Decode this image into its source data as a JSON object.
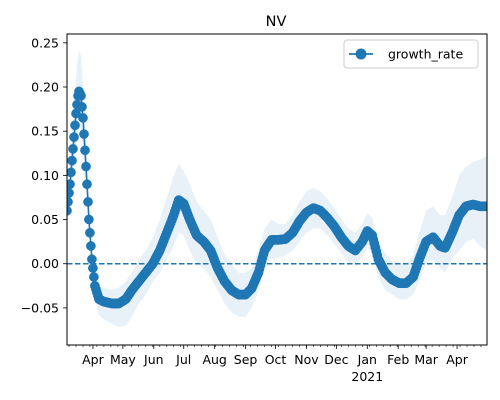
{
  "chart_data": {
    "type": "line",
    "title": "NV",
    "xlabel": "",
    "ylabel": "",
    "x_range": [
      "2020-03-06",
      "2021-05-01"
    ],
    "ylim": [
      -0.092,
      0.26
    ],
    "y_ticks": [
      -0.05,
      0.0,
      0.05,
      0.1,
      0.15,
      0.2,
      0.25
    ],
    "y_tick_labels": [
      "−0.05",
      "0.00",
      "0.05",
      "0.10",
      "0.15",
      "0.20",
      "0.25"
    ],
    "x_tick_labels": [
      "Apr",
      "May",
      "Jun",
      "Jul",
      "Aug",
      "Sep",
      "Oct",
      "Nov",
      "Dec",
      "Jan",
      "Feb",
      "Mar",
      "Apr"
    ],
    "x_tick_dates": [
      "2020-04-01",
      "2020-05-01",
      "2020-06-01",
      "2020-07-01",
      "2020-08-01",
      "2020-09-01",
      "2020-10-01",
      "2020-11-01",
      "2020-12-01",
      "2021-01-01",
      "2021-02-01",
      "2021-03-01",
      "2021-04-01"
    ],
    "x_year_label": "2021",
    "legend": {
      "entries": [
        "growth_rate"
      ],
      "placement": "top-right"
    },
    "reference_line": {
      "y": 0.0,
      "style": "dashed"
    },
    "grid": false,
    "colors": {
      "series": "#1f77b4",
      "band": "#1f77b4"
    },
    "series": [
      {
        "name": "growth_rate",
        "marker": "circle",
        "points": [
          [
            "2020-03-06",
            0.06,
            0.045,
            0.075
          ],
          [
            "2020-03-09",
            0.09,
            0.07,
            0.115
          ],
          [
            "2020-03-12",
            0.13,
            0.1,
            0.165
          ],
          [
            "2020-03-15",
            0.17,
            0.135,
            0.21
          ],
          [
            "2020-03-17",
            0.19,
            0.15,
            0.235
          ],
          [
            "2020-03-18",
            0.195,
            0.155,
            0.242
          ],
          [
            "2020-03-20",
            0.19,
            0.15,
            0.235
          ],
          [
            "2020-03-22",
            0.165,
            0.13,
            0.205
          ],
          [
            "2020-03-25",
            0.11,
            0.085,
            0.14
          ],
          [
            "2020-03-28",
            0.05,
            0.035,
            0.07
          ],
          [
            "2020-03-31",
            0.005,
            -0.005,
            0.02
          ],
          [
            "2020-04-03",
            -0.025,
            -0.04,
            -0.01
          ],
          [
            "2020-04-07",
            -0.04,
            -0.058,
            -0.025
          ],
          [
            "2020-04-12",
            -0.043,
            -0.063,
            -0.027
          ],
          [
            "2020-04-20",
            -0.045,
            -0.068,
            -0.03
          ],
          [
            "2020-04-27",
            -0.045,
            -0.072,
            -0.027
          ],
          [
            "2020-05-04",
            -0.04,
            -0.07,
            -0.02
          ],
          [
            "2020-05-10",
            -0.03,
            -0.06,
            -0.01
          ],
          [
            "2020-05-17",
            -0.02,
            -0.045,
            0.005
          ],
          [
            "2020-05-24",
            -0.01,
            -0.035,
            0.015
          ],
          [
            "2020-05-31",
            0.0,
            -0.02,
            0.03
          ],
          [
            "2020-06-07",
            0.015,
            -0.01,
            0.05
          ],
          [
            "2020-06-14",
            0.035,
            0.005,
            0.075
          ],
          [
            "2020-06-21",
            0.055,
            0.02,
            0.1
          ],
          [
            "2020-06-26",
            0.072,
            0.035,
            0.113
          ],
          [
            "2020-07-01",
            0.068,
            0.032,
            0.105
          ],
          [
            "2020-07-07",
            0.05,
            0.015,
            0.09
          ],
          [
            "2020-07-14",
            0.032,
            0.0,
            0.07
          ],
          [
            "2020-07-21",
            0.025,
            -0.005,
            0.06
          ],
          [
            "2020-07-28",
            0.015,
            -0.015,
            0.05
          ],
          [
            "2020-08-04",
            -0.005,
            -0.03,
            0.03
          ],
          [
            "2020-08-11",
            -0.02,
            -0.045,
            0.01
          ],
          [
            "2020-08-18",
            -0.03,
            -0.055,
            0.0
          ],
          [
            "2020-08-25",
            -0.035,
            -0.06,
            -0.01
          ],
          [
            "2020-09-01",
            -0.035,
            -0.06,
            -0.01
          ],
          [
            "2020-09-07",
            -0.028,
            -0.05,
            -0.005
          ],
          [
            "2020-09-14",
            -0.01,
            -0.03,
            0.015
          ],
          [
            "2020-09-20",
            0.015,
            -0.005,
            0.04
          ],
          [
            "2020-09-27",
            0.027,
            0.005,
            0.05
          ],
          [
            "2020-10-04",
            0.027,
            0.007,
            0.045
          ],
          [
            "2020-10-11",
            0.028,
            0.01,
            0.045
          ],
          [
            "2020-10-18",
            0.035,
            0.015,
            0.055
          ],
          [
            "2020-10-25",
            0.048,
            0.025,
            0.07
          ],
          [
            "2020-11-01",
            0.058,
            0.035,
            0.082
          ],
          [
            "2020-11-08",
            0.063,
            0.04,
            0.086
          ],
          [
            "2020-11-15",
            0.06,
            0.04,
            0.082
          ],
          [
            "2020-11-22",
            0.052,
            0.032,
            0.073
          ],
          [
            "2020-11-29",
            0.042,
            0.022,
            0.063
          ],
          [
            "2020-12-06",
            0.03,
            0.012,
            0.05
          ],
          [
            "2020-12-13",
            0.02,
            0.002,
            0.04
          ],
          [
            "2020-12-20",
            0.015,
            -0.003,
            0.035
          ],
          [
            "2020-12-27",
            0.025,
            0.008,
            0.045
          ],
          [
            "2021-01-01",
            0.037,
            0.018,
            0.057
          ],
          [
            "2021-01-06",
            0.032,
            0.012,
            0.052
          ],
          [
            "2021-01-12",
            0.005,
            -0.015,
            0.025
          ],
          [
            "2021-01-19",
            -0.01,
            -0.03,
            0.012
          ],
          [
            "2021-01-26",
            -0.018,
            -0.035,
            0.003
          ],
          [
            "2021-02-02",
            -0.022,
            -0.04,
            0.0
          ],
          [
            "2021-02-09",
            -0.022,
            -0.04,
            0.0
          ],
          [
            "2021-02-16",
            -0.015,
            -0.035,
            0.01
          ],
          [
            "2021-02-22",
            0.005,
            -0.02,
            0.035
          ],
          [
            "2021-03-01",
            0.025,
            0.0,
            0.06
          ],
          [
            "2021-03-08",
            0.03,
            0.005,
            0.065
          ],
          [
            "2021-03-15",
            0.02,
            -0.005,
            0.055
          ],
          [
            "2021-03-20",
            0.018,
            -0.01,
            0.055
          ],
          [
            "2021-03-27",
            0.035,
            0.005,
            0.075
          ],
          [
            "2021-04-03",
            0.055,
            0.015,
            0.1
          ],
          [
            "2021-04-10",
            0.065,
            0.025,
            0.11
          ],
          [
            "2021-04-17",
            0.067,
            0.028,
            0.115
          ],
          [
            "2021-04-24",
            0.065,
            0.02,
            0.118
          ],
          [
            "2021-05-01",
            0.065,
            0.015,
            0.122
          ]
        ]
      }
    ]
  }
}
